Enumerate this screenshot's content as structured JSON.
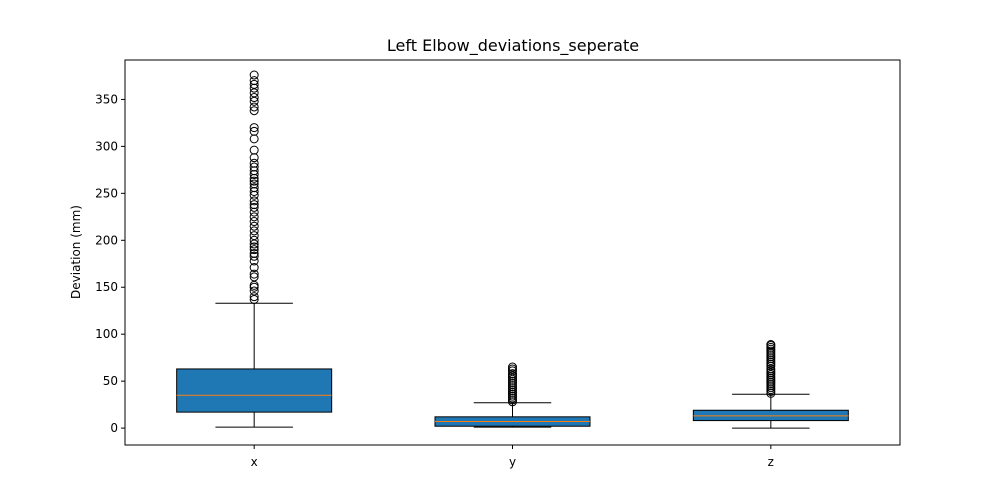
{
  "chart_data": {
    "type": "boxplot",
    "title": "Left Elbow_deviations_seperate",
    "xlabel": "",
    "ylabel": "Deviation (mm)",
    "ylim": [
      -18,
      392
    ],
    "yticks": [
      0,
      50,
      100,
      150,
      200,
      250,
      300,
      350
    ],
    "categories": [
      "x",
      "y",
      "z"
    ],
    "box_color": "#1f77b4",
    "median_color": "#ff7f0e",
    "boxes": [
      {
        "label": "x",
        "whisker_low": 1,
        "q1": 17,
        "median": 35,
        "q3": 63,
        "whisker_high": 133,
        "outliers": [
          137,
          140,
          146,
          150,
          152,
          161,
          164,
          171,
          178,
          183,
          186,
          190,
          193,
          196,
          200,
          205,
          210,
          215,
          220,
          225,
          230,
          235,
          238,
          242,
          248,
          252,
          256,
          260,
          263,
          266,
          270,
          274,
          278,
          282,
          288,
          296,
          308,
          316,
          320,
          338,
          342,
          348,
          352,
          357,
          362,
          366,
          370,
          376
        ]
      },
      {
        "label": "y",
        "whisker_low": 1,
        "q1": 2,
        "median": 7,
        "q3": 12,
        "whisker_high": 27,
        "outliers": [
          28,
          30,
          32,
          34,
          36,
          38,
          40,
          42,
          44,
          46,
          48,
          50,
          52,
          54,
          56,
          58,
          61,
          63,
          65
        ]
      },
      {
        "label": "z",
        "whisker_low": 0,
        "q1": 8,
        "median": 13,
        "q3": 19,
        "whisker_high": 36,
        "outliers": [
          37,
          39,
          41,
          43,
          45,
          47,
          49,
          51,
          53,
          55,
          57,
          59,
          61,
          63,
          66,
          68,
          70,
          72,
          74,
          76,
          78,
          80,
          82,
          84,
          86,
          88,
          89
        ]
      }
    ]
  }
}
